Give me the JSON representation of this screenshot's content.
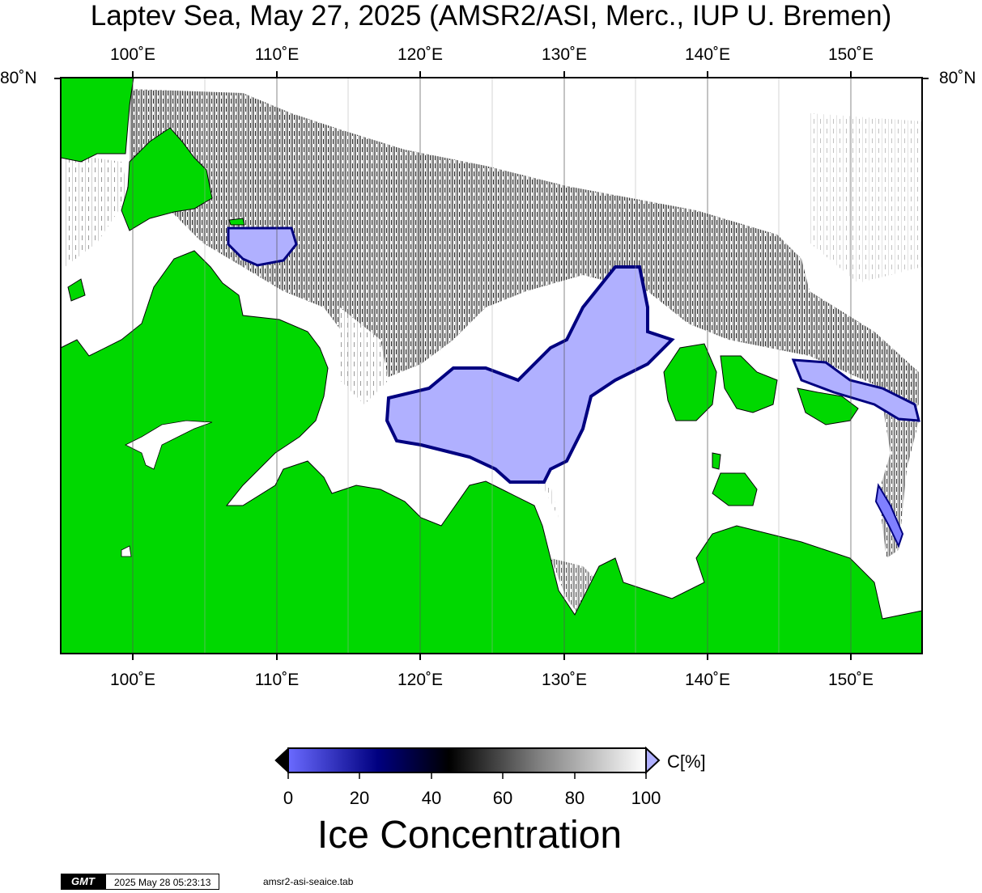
{
  "title": "Laptev Sea, May 27, 2025 (AMSR2/ASI, Merc., IUP U. Bremen)",
  "longitude_labels": [
    "100˚E",
    "110˚E",
    "120˚E",
    "130˚E",
    "140˚E",
    "150˚E"
  ],
  "latitude_label": "80˚N",
  "map": {
    "projection": "Mercator",
    "lon_range": [
      95,
      155
    ],
    "land_color": "#00d800",
    "open_water_color": "#ffffff",
    "ice_low_color": "#b0b0ff"
  },
  "colorbar": {
    "ticks": [
      "0",
      "20",
      "40",
      "60",
      "80",
      "100"
    ],
    "unit": "C[%]",
    "title": "Ice Concentration",
    "gradient": [
      "#6a6aff",
      "#000080",
      "#000000",
      "#808080",
      "#ffffff"
    ]
  },
  "footer": {
    "logo": "GMT",
    "timestamp": "2025 May 28 05:23:13",
    "file": "amsr2-asi-seaice.tab"
  }
}
